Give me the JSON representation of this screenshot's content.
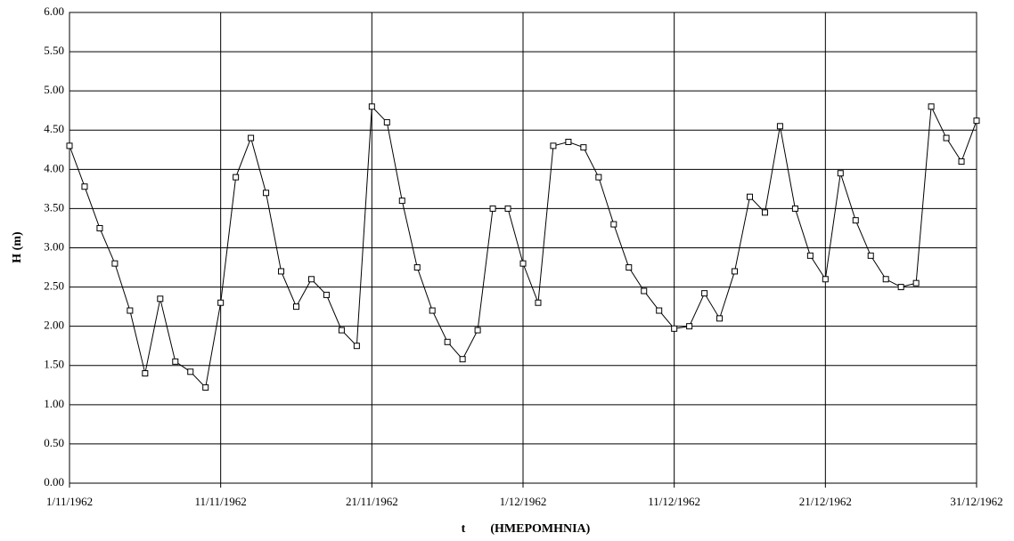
{
  "chart_data": {
    "type": "line",
    "xlabel": "t        (ΗΜΕΡΟΜΗΝΙΑ)",
    "ylabel": "H (m)",
    "x": [
      "1962-11-01",
      "1962-11-02",
      "1962-11-03",
      "1962-11-04",
      "1962-11-05",
      "1962-11-06",
      "1962-11-07",
      "1962-11-08",
      "1962-11-09",
      "1962-11-10",
      "1962-11-11",
      "1962-11-12",
      "1962-11-13",
      "1962-11-14",
      "1962-11-15",
      "1962-11-16",
      "1962-11-17",
      "1962-11-18",
      "1962-11-19",
      "1962-11-20",
      "1962-11-21",
      "1962-11-22",
      "1962-11-23",
      "1962-11-24",
      "1962-11-25",
      "1962-11-26",
      "1962-11-27",
      "1962-11-28",
      "1962-11-29",
      "1962-11-30",
      "1962-12-01",
      "1962-12-02",
      "1962-12-03",
      "1962-12-04",
      "1962-12-05",
      "1962-12-06",
      "1962-12-07",
      "1962-12-08",
      "1962-12-09",
      "1962-12-10",
      "1962-12-11",
      "1962-12-12",
      "1962-12-13",
      "1962-12-14",
      "1962-12-15",
      "1962-12-16",
      "1962-12-17",
      "1962-12-18",
      "1962-12-19",
      "1962-12-20",
      "1962-12-21",
      "1962-12-22",
      "1962-12-23",
      "1962-12-24",
      "1962-12-25",
      "1962-12-26",
      "1962-12-27",
      "1962-12-28",
      "1962-12-29",
      "1962-12-30",
      "1962-12-31"
    ],
    "values": [
      4.3,
      3.78,
      3.25,
      2.8,
      2.2,
      1.4,
      2.35,
      1.55,
      1.42,
      1.22,
      2.3,
      3.9,
      4.4,
      3.7,
      2.7,
      2.25,
      2.6,
      2.4,
      1.95,
      1.75,
      4.8,
      4.6,
      3.6,
      2.75,
      2.2,
      1.8,
      1.58,
      1.95,
      3.5,
      3.5,
      2.8,
      2.3,
      4.3,
      4.35,
      4.28,
      3.9,
      3.3,
      2.75,
      2.45,
      2.2,
      1.97,
      2.0,
      2.42,
      2.1,
      2.7,
      3.65,
      3.45,
      4.55,
      3.5,
      2.9,
      2.6,
      3.95,
      3.35,
      2.9,
      2.6,
      2.5,
      2.55,
      4.8,
      4.4,
      4.1,
      4.62
    ],
    "color": "#000000",
    "xlim": [
      "1962-11-01",
      "1962-12-31"
    ],
    "xticks": [
      {
        "value": "1962-11-01",
        "label": "1/11/1962"
      },
      {
        "value": "1962-11-11",
        "label": "11/11/1962"
      },
      {
        "value": "1962-11-21",
        "label": "21/11/1962"
      },
      {
        "value": "1962-12-01",
        "label": "1/12/1962"
      },
      {
        "value": "1962-12-11",
        "label": "11/12/1962"
      },
      {
        "value": "1962-12-21",
        "label": "21/12/1962"
      },
      {
        "value": "1962-12-31",
        "label": "31/12/1962"
      }
    ],
    "ylim": [
      0,
      6
    ],
    "yticks": [
      {
        "value": 0,
        "label": "0.00"
      },
      {
        "value": 0.5,
        "label": "0.50"
      },
      {
        "value": 1,
        "label": "1.00"
      },
      {
        "value": 1.5,
        "label": "1.50"
      },
      {
        "value": 2,
        "label": "2.00"
      },
      {
        "value": 2.5,
        "label": "2.50"
      },
      {
        "value": 3,
        "label": "3.00"
      },
      {
        "value": 3.5,
        "label": "3.50"
      },
      {
        "value": 4,
        "label": "4.00"
      },
      {
        "value": 4.5,
        "label": "4.50"
      },
      {
        "value": 5,
        "label": "5.00"
      },
      {
        "value": 5.5,
        "label": "5.50"
      },
      {
        "value": 6,
        "label": "6.00"
      }
    ],
    "grid": true
  }
}
